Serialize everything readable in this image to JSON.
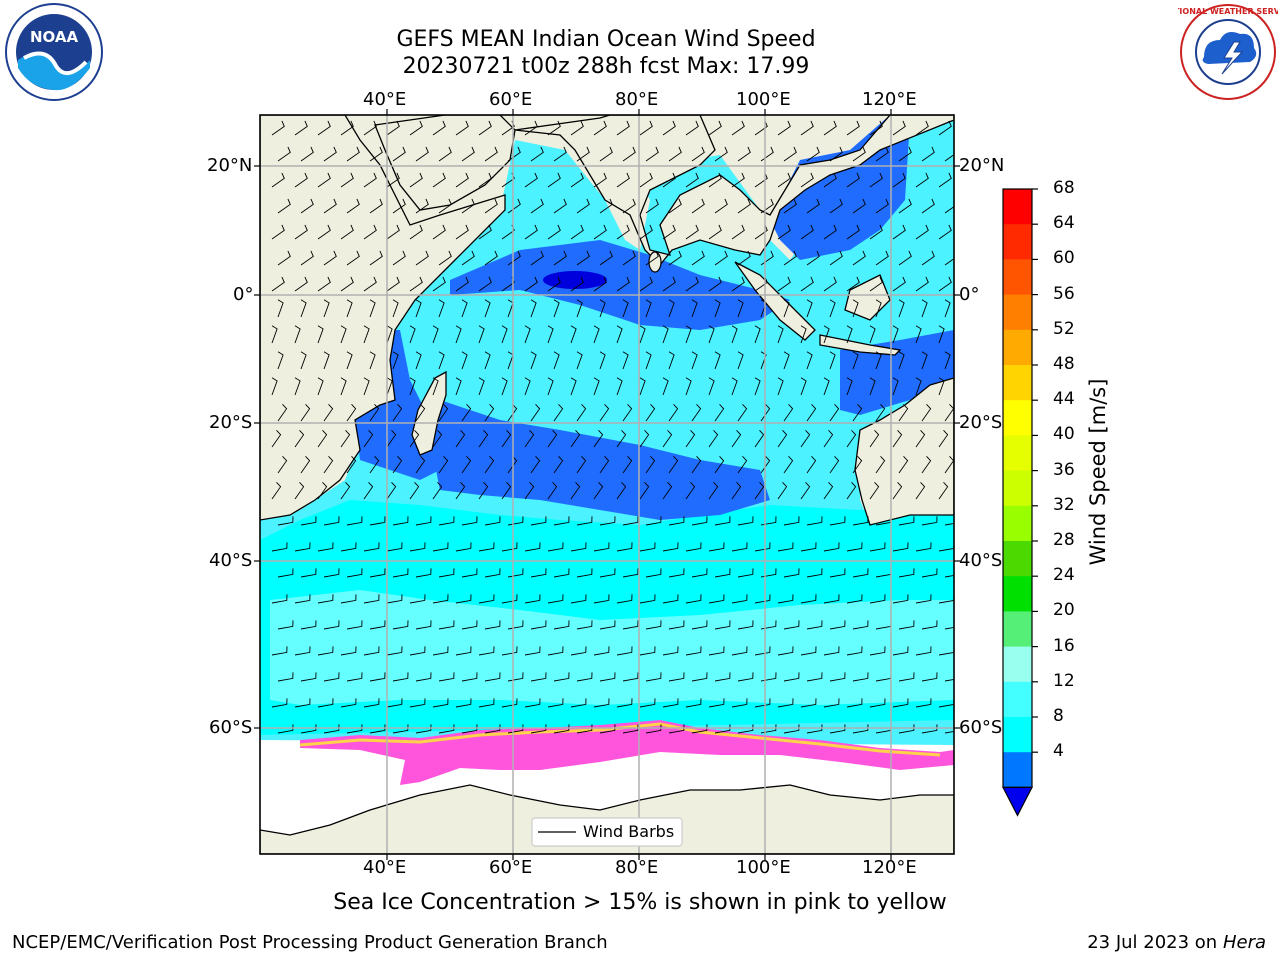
{
  "title": {
    "line1": "GEFS MEAN Indian Ocean Wind Speed",
    "line2": "20230721 t00z 288h fcst   Max: 17.99"
  },
  "caption": "Sea Ice Concentration > 15% is shown in pink to yellow",
  "footer": {
    "left": "NCEP/EMC/Verification Post Processing Product Generation Branch",
    "right_prefix": "23 Jul 2023 on ",
    "right_host": "Hera"
  },
  "axes": {
    "lon_labels": [
      "40°E",
      "60°E",
      "80°E",
      "100°E",
      "120°E"
    ],
    "lat_labels": [
      "20°N",
      "0°",
      "20°S",
      "40°S",
      "60°S"
    ]
  },
  "colorbar": {
    "title": "Wind Speed [m/s]",
    "ticks": [
      "68",
      "64",
      "60",
      "56",
      "52",
      "48",
      "44",
      "40",
      "36",
      "32",
      "28",
      "24",
      "20",
      "16",
      "12",
      "8",
      "4"
    ],
    "colors": [
      "#ff0000",
      "#ff2a00",
      "#ff5500",
      "#ff8000",
      "#ffaa00",
      "#ffd400",
      "#ffff00",
      "#e6ff00",
      "#ccff00",
      "#99ff00",
      "#4cd900",
      "#00e000",
      "#55ee77",
      "#99ffee",
      "#44ffff",
      "#00ffff",
      "#0077ff"
    ],
    "extend_color": "#0000ee"
  },
  "legend": {
    "label": "Wind Barbs"
  },
  "logos": {
    "left": "NOAA",
    "right": "NATIONAL WEATHER SERVICE"
  }
}
